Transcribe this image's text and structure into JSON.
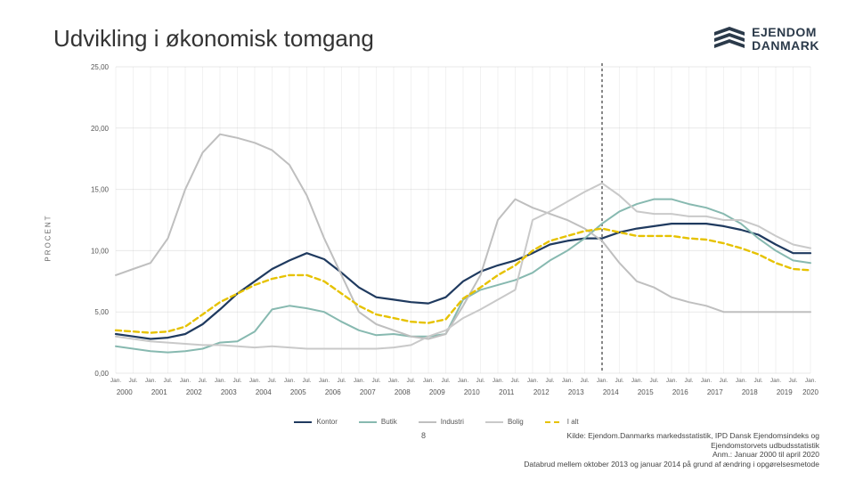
{
  "title": "Udvikling i økonomisk tomgang",
  "logo": {
    "line1": "EJENDOM",
    "line2": "DANMARK",
    "color": "#2b3a4a"
  },
  "chart": {
    "type": "line",
    "ylabel": "PROCENT",
    "ylim": [
      0,
      25
    ],
    "ytick_step": 5,
    "yformat": ",00",
    "xyears_start": 2000,
    "xyears_end": 2020,
    "xminors": [
      "Jan.",
      "Jul."
    ],
    "background_color": "#ffffff",
    "grid_color": "#e9e9e9",
    "vline_color": "#bfbfbf",
    "highlight_line": {
      "index": 28,
      "color": "#888888",
      "dash": "3,3",
      "width": 2
    },
    "series": [
      {
        "name": "Kontor",
        "color": "#1f3a5f",
        "width": 2.2,
        "dash": "none",
        "values": [
          3.2,
          3.0,
          2.8,
          2.9,
          3.2,
          4.0,
          5.2,
          6.5,
          7.5,
          8.5,
          9.2,
          9.8,
          9.3,
          8.2,
          7.0,
          6.2,
          6.0,
          5.8,
          5.7,
          6.2,
          7.5,
          8.3,
          8.8,
          9.2,
          9.8,
          10.5,
          10.8,
          11.0,
          11.0,
          11.5,
          11.8,
          12.0,
          12.2,
          12.2,
          12.2,
          12.0,
          11.7,
          11.3,
          10.5,
          9.8,
          9.8
        ]
      },
      {
        "name": "Butik",
        "color": "#87b9b0",
        "width": 2.0,
        "dash": "none",
        "values": [
          2.2,
          2.0,
          1.8,
          1.7,
          1.8,
          2.0,
          2.5,
          2.6,
          3.4,
          5.2,
          5.5,
          5.3,
          5.0,
          4.2,
          3.5,
          3.1,
          3.2,
          3.0,
          3.0,
          3.2,
          6.0,
          6.8,
          7.2,
          7.6,
          8.2,
          9.2,
          10.0,
          11.0,
          12.2,
          13.2,
          13.8,
          14.2,
          14.2,
          13.8,
          13.5,
          13.0,
          12.2,
          11.0,
          10.0,
          9.2,
          9.0
        ]
      },
      {
        "name": "Industri",
        "color": "#bfbfbf",
        "width": 2.0,
        "dash": "none",
        "values": [
          8.0,
          8.5,
          9.0,
          11.0,
          15.0,
          18.0,
          19.5,
          19.2,
          18.8,
          18.2,
          17.0,
          14.5,
          11.0,
          8.0,
          5.0,
          4.0,
          3.5,
          3.0,
          2.8,
          3.2,
          5.5,
          8.0,
          12.5,
          14.2,
          13.5,
          13.0,
          12.5,
          11.8,
          10.8,
          9.0,
          7.5,
          7.0,
          6.2,
          5.8,
          5.5,
          5.0,
          5.0,
          5.0,
          5.0,
          5.0,
          5.0
        ]
      },
      {
        "name": "Bolig",
        "color": "#c9c9c9",
        "width": 2.0,
        "dash": "none",
        "values": [
          3.0,
          2.8,
          2.6,
          2.5,
          2.4,
          2.3,
          2.3,
          2.2,
          2.1,
          2.2,
          2.1,
          2.0,
          2.0,
          2.0,
          2.0,
          2.0,
          2.1,
          2.3,
          3.0,
          3.5,
          4.5,
          5.2,
          6.0,
          6.8,
          12.5,
          13.2,
          14.0,
          14.8,
          15.5,
          14.5,
          13.2,
          13.0,
          13.0,
          12.8,
          12.8,
          12.5,
          12.5,
          12.0,
          11.2,
          10.5,
          10.2
        ]
      },
      {
        "name": "I alt",
        "color": "#e6c200",
        "width": 2.4,
        "dash": "6,4",
        "values": [
          3.5,
          3.4,
          3.3,
          3.4,
          3.8,
          4.8,
          5.8,
          6.5,
          7.2,
          7.7,
          8.0,
          8.0,
          7.5,
          6.5,
          5.5,
          4.8,
          4.5,
          4.2,
          4.1,
          4.4,
          6.1,
          7.0,
          8.0,
          8.8,
          10.0,
          10.8,
          11.2,
          11.6,
          11.8,
          11.5,
          11.2,
          11.2,
          11.2,
          11.0,
          10.9,
          10.6,
          10.2,
          9.7,
          9.0,
          8.5,
          8.4
        ]
      }
    ]
  },
  "page_number": "8",
  "source": {
    "line1": "Kilde: Ejendom.Danmarks markedsstatistik, IPD Dansk Ejendomsindeks og",
    "line2": "Ejendomstorvets udbudsstatistik",
    "line3": "Anm.: Januar 2000 til april 2020",
    "line4": "Databrud mellem oktober 2013 og januar 2014 på grund af ændring i opgørelsesmetode"
  },
  "legend_labels": [
    "Kontor",
    "Butik",
    "Industri",
    "Bolig",
    "I alt"
  ]
}
